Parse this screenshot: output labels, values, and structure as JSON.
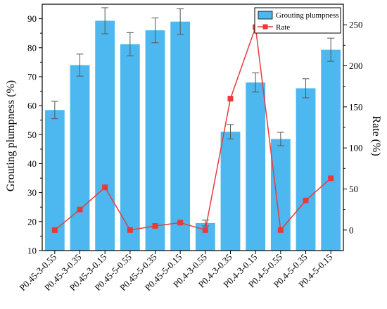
{
  "chart_data": {
    "type": "bar+line",
    "categories": [
      "P0.45-3-0.55",
      "P0.45-3-0.35",
      "P0.45-3-0.15",
      "P0.45-5-0.55",
      "P0.45-5-0.35",
      "P0.45-5-0.15",
      "P0.4-3-0.55",
      "P0.4-3-0.35",
      "P0.4-3-0.15",
      "P0.4-5-0.55",
      "P0.4-5-0.35",
      "P0.4-5-0.15"
    ],
    "series": [
      {
        "name": "Grouting plumpness",
        "type": "bar",
        "axis": "left",
        "color": "#4db8f0",
        "values": [
          58.5,
          74.0,
          89.3,
          81.2,
          86.0,
          89.0,
          19.5,
          51.0,
          68.0,
          48.5,
          66.0,
          79.3
        ],
        "errors": [
          3.0,
          3.8,
          4.5,
          4.0,
          4.3,
          4.4,
          1.0,
          2.5,
          3.3,
          2.3,
          3.3,
          4.0
        ]
      },
      {
        "name": "Rate",
        "type": "line",
        "axis": "right",
        "color": "#e83a3a",
        "values": [
          0,
          25,
          52,
          0,
          5,
          9,
          0,
          160,
          247,
          0,
          36,
          63
        ]
      }
    ],
    "ylabel": "Grouting plumpness (%)",
    "y2label": "Rate (%)",
    "ylim": [
      10,
      95
    ],
    "y2lim": [
      -25,
      275
    ],
    "yticks": [
      10,
      20,
      30,
      40,
      50,
      60,
      70,
      80,
      90
    ],
    "y2ticks": [
      0,
      50,
      100,
      150,
      200,
      250
    ],
    "legend_position": "top-right"
  }
}
